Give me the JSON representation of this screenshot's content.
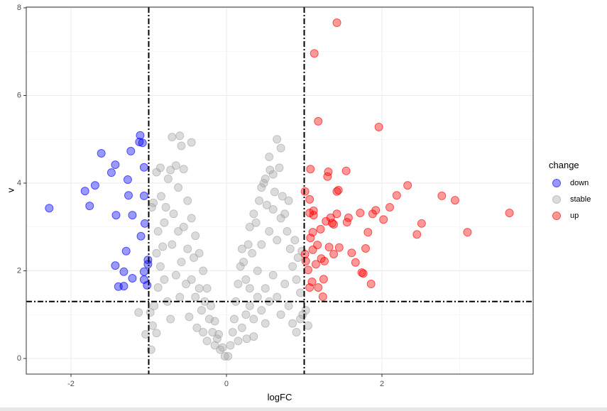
{
  "chart_data": {
    "type": "scatter",
    "x_label": "logFC",
    "y_label": "v",
    "legend_title": "change",
    "legend": "right",
    "grid": true,
    "xlim": [
      -2.575,
      3.945
    ],
    "ylim": [
      -0.356,
      8.016
    ],
    "xticks": [
      -2,
      0,
      2
    ],
    "yticks": [
      0,
      2,
      4,
      6,
      8
    ],
    "xminor": [
      -1,
      1,
      3
    ],
    "yminor": [
      1,
      3,
      5,
      7
    ],
    "vlines": [
      -1,
      1
    ],
    "hline": 1.3,
    "alpha": 0.4,
    "series": [
      {
        "name": "stable",
        "color": "#a6a6a6",
        "x": [
          -0.93,
          -0.98,
          -0.95,
          -0.9,
          -0.88,
          -0.85,
          -0.82,
          -0.8,
          -0.78,
          -0.75,
          -0.72,
          -0.7,
          -0.65,
          -0.62,
          -0.6,
          -0.58,
          -0.55,
          -0.45,
          -0.5,
          -0.45,
          -0.4,
          -0.35,
          -0.3,
          -0.25,
          -0.2,
          -0.15,
          -0.1,
          -0.05,
          -0.02,
          -0.9,
          -0.88,
          -0.84,
          -0.8,
          -0.76,
          -0.72,
          -0.7,
          -0.68,
          -0.65,
          -0.62,
          -0.6,
          -0.58,
          -0.55,
          -0.52,
          -0.5,
          -0.48,
          -0.45,
          -0.42,
          -0.4,
          -0.38,
          -0.35,
          -0.32,
          -0.3,
          -0.28,
          -0.25,
          -0.22,
          -0.18,
          -0.15,
          -0.12,
          -0.08,
          -1.13,
          -1.04,
          -0.97,
          -0.9,
          -0.85,
          -0.94,
          -0.96,
          0.02,
          0.05,
          0.08,
          0.1,
          0.12,
          0.15,
          0.18,
          0.2,
          0.22,
          0.25,
          0.28,
          0.3,
          0.33,
          0.35,
          0.38,
          0.4,
          0.42,
          0.45,
          0.48,
          0.5,
          0.52,
          0.55,
          0.56,
          0.6,
          0.62,
          0.65,
          0.68,
          0.7,
          0.72,
          0.75,
          0.78,
          0.8,
          0.82,
          0.85,
          0.88,
          0.9,
          0.92,
          0.95,
          0.97,
          0.98,
          1.02,
          1.05,
          0.15,
          0.2,
          0.25,
          0.3,
          0.35,
          0.4,
          0.45,
          0.5,
          0.55,
          0.6,
          0.65,
          0.7,
          0.75,
          0.8,
          0.85,
          0.9,
          0.95,
          0.45,
          0.55,
          0.65,
          0.7,
          0.6,
          0.35,
          0.3,
          0.26,
          0.5
        ],
        "values": [
          1.2,
          1.05,
          0.75,
          0.58,
          1.62,
          2.1,
          2.55,
          3.1,
          3.45,
          4.1,
          4.3,
          5.05,
          4.4,
          3.9,
          5.08,
          4.85,
          4.32,
          4.93,
          3.6,
          3.2,
          2.8,
          2.4,
          2.0,
          1.6,
          1.2,
          0.85,
          0.55,
          0.25,
          0.05,
          2.4,
          2.9,
          3.7,
          1.8,
          1.3,
          0.9,
          2.6,
          3.3,
          1.9,
          2.9,
          1.4,
          2.2,
          3.0,
          1.7,
          2.5,
          0.95,
          1.8,
          2.3,
          1.4,
          0.7,
          1.6,
          1.1,
          0.6,
          1.3,
          0.4,
          0.9,
          0.6,
          0.3,
          0.45,
          0.2,
          1.05,
          0.55,
          0.2,
          4.25,
          4.35,
          3.55,
          3.45,
          0.05,
          0.3,
          0.6,
          0.9,
          1.3,
          1.7,
          2.1,
          2.5,
          2.2,
          1.8,
          2.6,
          3.0,
          2.4,
          3.3,
          3.1,
          2.0,
          3.6,
          3.9,
          4.0,
          4.1,
          3.5,
          4.6,
          4.3,
          4.2,
          3.8,
          5.0,
          4.35,
          4.8,
          3.7,
          3.3,
          2.9,
          3.6,
          2.5,
          2.1,
          2.7,
          1.8,
          2.3,
          1.5,
          2.45,
          1.0,
          1.1,
          0.75,
          0.4,
          0.7,
          1.0,
          1.2,
          0.9,
          1.4,
          1.1,
          1.6,
          1.3,
          1.9,
          1.4,
          1.0,
          1.7,
          1.2,
          0.8,
          0.6,
          0.9,
          2.6,
          2.9,
          2.7,
          3.2,
          3.4,
          0.5,
          1.6,
          0.45,
          0.8
        ]
      },
      {
        "name": "down",
        "color": "#0000ff",
        "x": [
          -2.28,
          -1.82,
          -1.76,
          -1.69,
          -1.61,
          -1.48,
          -1.43,
          -1.42,
          -1.43,
          -1.39,
          -1.32,
          -1.32,
          -1.29,
          -1.27,
          -1.26,
          -1.23,
          -1.21,
          -1.21,
          -1.12,
          -1.11,
          -1.08,
          -1.06,
          -1.06,
          -1.1,
          -1.05,
          -1.06,
          -1.06,
          -1.01,
          -1.01,
          -1.02
        ],
        "values": [
          3.43,
          3.82,
          3.48,
          3.95,
          4.68,
          4.24,
          4.42,
          3.27,
          2.12,
          1.64,
          1.65,
          1.98,
          2.45,
          4.08,
          3.72,
          4.73,
          3.27,
          1.83,
          4.94,
          5.09,
          4.92,
          4.36,
          3.71,
          2.79,
          3.08,
          1.98,
          1.8,
          2.25,
          2.15,
          1.67
        ]
      },
      {
        "name": "up",
        "color": "#ff0000",
        "x": [
          1.42,
          1.13,
          1.18,
          1.96,
          1.08,
          1.31,
          1.3,
          1.54,
          1.44,
          1.42,
          1.01,
          1.07,
          2.33,
          2.19,
          2.77,
          2.94,
          2.1,
          1.92,
          1.88,
          1.72,
          2.02,
          1.57,
          1.42,
          1.34,
          1.36,
          1.28,
          1.12,
          1.07,
          1.12,
          1.38,
          1.55,
          3.64,
          2.51,
          2.45,
          3.1,
          1.82,
          1.21,
          1.11,
          1.08,
          1.17,
          1.11,
          1.22,
          1.32,
          1.45,
          1.61,
          1.79,
          1.38,
          1.26,
          1.15,
          1.66,
          1.74,
          1.76,
          1.01,
          1.02,
          1.1,
          1.07,
          1.18,
          1.25,
          1.24,
          1.86,
          1.05
        ],
        "values": [
          7.66,
          6.96,
          5.41,
          5.28,
          4.32,
          4.26,
          4.15,
          4.28,
          3.84,
          3.81,
          3.81,
          3.63,
          3.95,
          3.72,
          3.71,
          3.61,
          3.45,
          3.38,
          3.3,
          3.32,
          3.17,
          3.21,
          3.3,
          3.21,
          3.09,
          3.13,
          3.37,
          3.32,
          3.27,
          3.06,
          3.11,
          3.32,
          3.08,
          2.83,
          2.88,
          2.88,
          2.95,
          2.88,
          2.75,
          2.59,
          2.48,
          2.28,
          2.54,
          2.53,
          2.41,
          2.51,
          2.38,
          2.22,
          2.15,
          2.19,
          1.96,
          1.94,
          2.38,
          2.22,
          1.75,
          1.62,
          1.62,
          1.81,
          1.41,
          1.7,
          2.02
        ]
      }
    ]
  }
}
